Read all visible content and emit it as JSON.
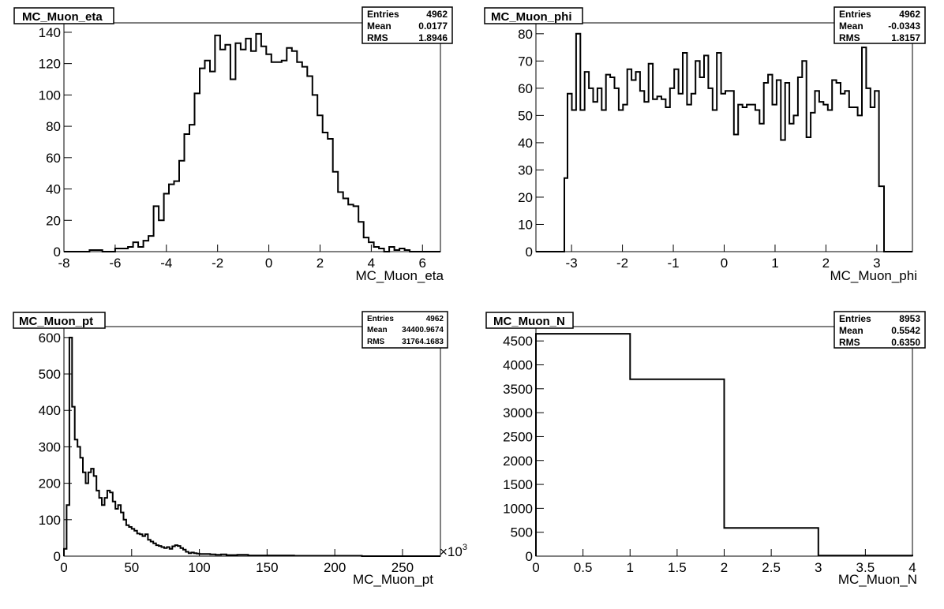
{
  "chart_data": [
    {
      "type": "histogram",
      "title": "MC_Muon_eta",
      "xlabel": "MC_Muon_eta",
      "xlim": [
        -8,
        6.7
      ],
      "ylim": [
        0,
        146
      ],
      "xticks": [
        "-8",
        "-6",
        "-4",
        "-2",
        "0",
        "2",
        "4",
        "6"
      ],
      "xtick_values": [
        -8,
        -6,
        -4,
        -2,
        0,
        2,
        4,
        6
      ],
      "yticks": [
        "0",
        "20",
        "40",
        "60",
        "80",
        "100",
        "120",
        "140"
      ],
      "ytick_values": [
        0,
        20,
        40,
        60,
        80,
        100,
        120,
        140
      ],
      "stats": {
        "labels": [
          "Entries",
          "Mean",
          "RMS"
        ],
        "values": [
          "4962",
          "0.0177",
          "1.8946"
        ]
      },
      "bin_edges": [
        -8,
        -7,
        -6.5,
        -6,
        -5.5,
        -5.3,
        -5.1,
        -4.9,
        -4.7,
        -4.5,
        -4.3,
        -4.1,
        -3.9,
        -3.7,
        -3.5,
        -3.3,
        -3.1,
        -2.9,
        -2.7,
        -2.5,
        -2.3,
        -2.1,
        -1.9,
        -1.7,
        -1.5,
        -1.3,
        -1.1,
        -0.9,
        -0.7,
        -0.5,
        -0.3,
        -0.1,
        0.1,
        0.3,
        0.5,
        0.7,
        0.9,
        1.1,
        1.3,
        1.5,
        1.7,
        1.9,
        2.1,
        2.3,
        2.5,
        2.7,
        2.9,
        3.1,
        3.3,
        3.5,
        3.7,
        3.9,
        4.1,
        4.3,
        4.5,
        4.7,
        4.9,
        5.1,
        5.3,
        5.5,
        6,
        6.7
      ],
      "values": [
        0,
        1,
        0,
        2,
        3,
        6,
        3,
        7,
        10,
        29,
        20,
        37,
        43,
        45,
        58,
        75,
        81,
        101,
        117,
        122,
        115,
        138,
        129,
        132,
        110,
        133,
        129,
        136,
        128,
        139,
        131,
        126,
        121,
        121,
        122,
        130,
        128,
        121,
        118,
        112,
        100,
        87,
        76,
        72,
        51,
        38,
        34,
        30,
        29,
        19,
        9,
        6,
        3,
        2,
        0,
        3,
        1,
        2,
        1,
        0,
        0
      ]
    },
    {
      "type": "histogram",
      "title": "MC_Muon_phi",
      "xlabel": "MC_Muon_phi",
      "xlim": [
        -3.7,
        3.7
      ],
      "ylim": [
        0,
        84
      ],
      "xticks": [
        "-3",
        "-2",
        "-1",
        "0",
        "1",
        "2",
        "3"
      ],
      "xtick_values": [
        -3,
        -2,
        -1,
        0,
        1,
        2,
        3
      ],
      "yticks": [
        "0",
        "10",
        "20",
        "30",
        "40",
        "50",
        "60",
        "70",
        "80"
      ],
      "ytick_values": [
        0,
        10,
        20,
        30,
        40,
        50,
        60,
        70,
        80
      ],
      "stats": {
        "labels": [
          "Entries",
          "Mean",
          "RMS"
        ],
        "values": [
          "4962",
          "-0.0343",
          "1.8157"
        ]
      },
      "bin_edges": [
        -3.7,
        -3.1416,
        -3.0787,
        -2.9948,
        -2.911,
        -2.8271,
        -2.7433,
        -2.6594,
        -2.5756,
        -2.4917,
        -2.4079,
        -2.324,
        -2.2402,
        -2.1563,
        -2.0725,
        -1.9886,
        -1.9048,
        -1.8209,
        -1.7371,
        -1.6532,
        -1.5694,
        -1.4855,
        -1.4017,
        -1.3178,
        -1.234,
        -1.1501,
        -1.0663,
        -0.9824,
        -0.8986,
        -0.8147,
        -0.7309,
        -0.647,
        -0.5632,
        -0.4793,
        -0.3955,
        -0.3116,
        -0.2278,
        -0.1439,
        -0.0601,
        0.0238,
        0.1076,
        0.1915,
        0.2753,
        0.3592,
        0.443,
        0.5269,
        0.6107,
        0.6946,
        0.7784,
        0.8623,
        0.9461,
        1.03,
        1.1138,
        1.1977,
        1.2815,
        1.3654,
        1.4492,
        1.5331,
        1.6169,
        1.7008,
        1.7846,
        1.8685,
        1.9523,
        2.0362,
        2.12,
        2.2039,
        2.2877,
        2.3716,
        2.4554,
        2.5393,
        2.6231,
        2.707,
        2.7908,
        2.8747,
        2.9585,
        3.0424,
        3.1416,
        3.7
      ],
      "values": [
        0,
        27,
        58,
        52,
        80,
        52,
        66,
        60,
        55,
        60,
        52,
        65,
        64,
        60,
        52,
        54,
        67,
        63,
        66,
        59,
        55,
        69,
        56,
        57,
        56,
        53,
        60,
        67,
        58,
        73,
        54,
        58,
        70,
        64,
        72,
        60,
        52,
        73,
        58,
        59,
        59,
        43,
        54,
        53,
        54,
        54,
        52,
        47,
        62,
        65,
        54,
        63,
        41,
        62,
        47,
        50,
        64,
        70,
        42,
        51,
        59,
        55,
        54,
        52,
        63,
        62,
        58,
        59,
        53,
        53,
        50,
        75,
        60,
        53,
        59,
        24,
        0
      ]
    },
    {
      "type": "histogram",
      "title": "MC_Muon_pt",
      "xlabel": "MC_Muon_pt",
      "x_multiplier_label": "×10",
      "x_multiplier_exponent": "3",
      "xlim": [
        0,
        278
      ],
      "ylim": [
        0,
        630
      ],
      "xticks": [
        "0",
        "50",
        "100",
        "150",
        "200",
        "250"
      ],
      "xtick_values": [
        0,
        50,
        100,
        150,
        200,
        250
      ],
      "yticks": [
        "0",
        "100",
        "200",
        "300",
        "400",
        "500",
        "600"
      ],
      "ytick_values": [
        0,
        100,
        200,
        300,
        400,
        500,
        600
      ],
      "stats": {
        "labels": [
          "Entries",
          "Mean",
          "RMS"
        ],
        "values": [
          "4962",
          "34400.9674",
          "31764.1683"
        ]
      },
      "bin_edges": [
        0,
        2,
        4,
        6,
        8,
        10,
        12,
        14,
        16,
        18,
        20,
        22,
        24,
        26,
        28,
        30,
        32,
        34,
        36,
        38,
        40,
        42,
        44,
        46,
        48,
        50,
        52,
        54,
        56,
        58,
        60,
        62,
        64,
        66,
        68,
        70,
        72,
        74,
        76,
        78,
        80,
        82,
        84,
        86,
        88,
        90,
        92,
        94,
        96,
        98,
        100,
        104,
        108,
        112,
        116,
        120,
        124,
        128,
        132,
        136,
        140,
        150,
        160,
        170,
        180,
        190,
        200,
        210,
        220,
        230,
        278
      ],
      "values": [
        20,
        140,
        600,
        410,
        320,
        300,
        270,
        230,
        200,
        230,
        240,
        220,
        180,
        160,
        140,
        160,
        180,
        175,
        150,
        130,
        140,
        120,
        100,
        85,
        80,
        75,
        70,
        62,
        60,
        55,
        60,
        45,
        40,
        35,
        30,
        28,
        25,
        22,
        25,
        20,
        27,
        30,
        28,
        22,
        18,
        12,
        8,
        10,
        8,
        7,
        6,
        6,
        5,
        4,
        5,
        3,
        3,
        4,
        4,
        2,
        2,
        2,
        2,
        1,
        1,
        1,
        1,
        1,
        0,
        0
      ]
    },
    {
      "type": "histogram",
      "title": "MC_Muon_N",
      "xlabel": "MC_Muon_N",
      "xlim": [
        0,
        4
      ],
      "ylim": [
        0,
        4800
      ],
      "xticks": [
        "0",
        "0.5",
        "1",
        "1.5",
        "2",
        "2.5",
        "3",
        "3.5",
        "4"
      ],
      "xtick_values": [
        0,
        0.5,
        1,
        1.5,
        2,
        2.5,
        3,
        3.5,
        4
      ],
      "yticks": [
        "0",
        "500",
        "1000",
        "1500",
        "2000",
        "2500",
        "3000",
        "3500",
        "4000",
        "4500"
      ],
      "ytick_values": [
        0,
        500,
        1000,
        1500,
        2000,
        2500,
        3000,
        3500,
        4000,
        4500
      ],
      "stats": {
        "labels": [
          "Entries",
          "Mean",
          "RMS"
        ],
        "values": [
          "8953",
          "0.5542",
          "0.6350"
        ]
      },
      "bin_edges": [
        0,
        1,
        2,
        3,
        4
      ],
      "values": [
        4650,
        3700,
        590,
        13
      ]
    }
  ]
}
